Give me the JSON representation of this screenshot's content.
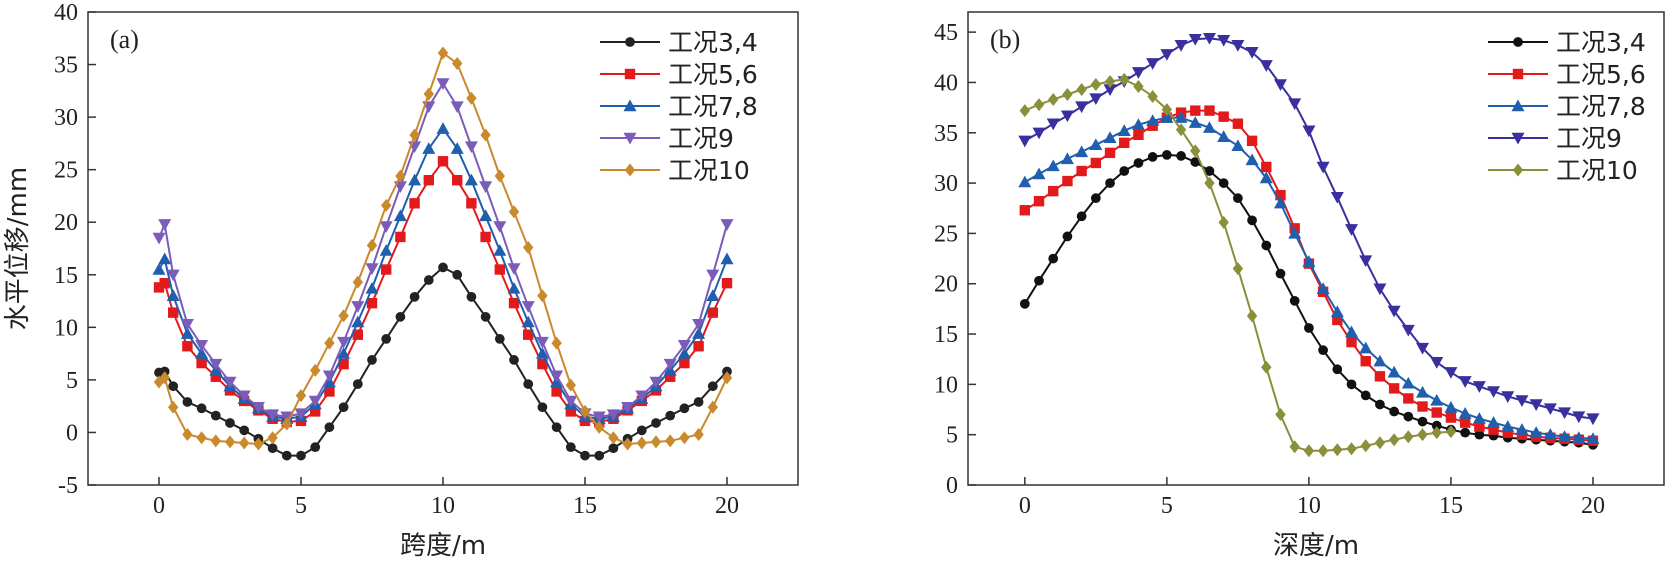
{
  "chart_data": [
    {
      "panel": "(a)",
      "type": "line",
      "xlabel": "跨度/m",
      "ylabel": "水平位移/mm",
      "xlim": [
        -2.5,
        22.5
      ],
      "ylim": [
        -5,
        40
      ],
      "xticks": [
        0,
        5,
        10,
        15,
        20
      ],
      "yticks": [
        -5,
        0,
        5,
        10,
        15,
        20,
        25,
        30,
        35,
        40
      ],
      "legend_position": "top-right",
      "grid": false,
      "series": [
        {
          "name": "工况3,4",
          "color": "#222222",
          "marker": "circle",
          "x": [
            0,
            0.2,
            0.5,
            1,
            1.5,
            2,
            2.5,
            3,
            3.5,
            4,
            4.5,
            5,
            5.5,
            6,
            6.5,
            7,
            7.5,
            8,
            8.5,
            9,
            9.5,
            10,
            10.5,
            11,
            11.5,
            12,
            12.5,
            13,
            13.5,
            14,
            14.5,
            15,
            15.5,
            16,
            16.5,
            17,
            17.5,
            18,
            18.5,
            19,
            19.5,
            20
          ],
          "y": [
            5.7,
            5.8,
            4.4,
            2.9,
            2.3,
            1.6,
            0.9,
            0.2,
            -0.6,
            -1.5,
            -2.2,
            -2.2,
            -1.4,
            0.5,
            2.4,
            4.6,
            6.9,
            8.9,
            11,
            12.9,
            14.5,
            15.7,
            15,
            12.9,
            11,
            8.9,
            6.9,
            4.6,
            2.4,
            0.5,
            -1.4,
            -2.2,
            -2.2,
            -1.5,
            -0.6,
            0.2,
            0.9,
            1.6,
            2.3,
            2.9,
            4.4,
            5.8
          ]
        },
        {
          "name": "工况5,6",
          "color": "#e31a1c",
          "marker": "square",
          "x": [
            0,
            0.2,
            0.5,
            1,
            1.5,
            2,
            2.5,
            3,
            3.5,
            4,
            4.5,
            5,
            5.5,
            6,
            6.5,
            7,
            7.5,
            8,
            8.5,
            9,
            9.5,
            10,
            10.5,
            11,
            11.5,
            12,
            12.5,
            13,
            13.5,
            14,
            14.5,
            15,
            15.5,
            16,
            16.5,
            17,
            17.5,
            18,
            18.5,
            19,
            19.5,
            20
          ],
          "y": [
            13.8,
            14.2,
            11.4,
            8.2,
            6.6,
            5.3,
            4,
            3,
            2.1,
            1.3,
            1,
            1.1,
            2,
            3.9,
            6.5,
            9.3,
            12.3,
            15.5,
            18.6,
            21.8,
            24,
            25.8,
            24,
            21.8,
            18.6,
            15.5,
            12.3,
            9.3,
            6.5,
            3.9,
            2,
            1.1,
            1,
            1.3,
            2.1,
            3,
            4,
            5.3,
            6.6,
            8.2,
            11.4,
            14.2
          ]
        },
        {
          "name": "工况7,8",
          "color": "#1f5fae",
          "marker": "triangle-up",
          "x": [
            0,
            0.2,
            0.5,
            1,
            1.5,
            2,
            2.5,
            3,
            3.5,
            4,
            4.5,
            5,
            5.5,
            6,
            6.5,
            7,
            7.5,
            8,
            8.5,
            9,
            9.5,
            10,
            10.5,
            11,
            11.5,
            12,
            12.5,
            13,
            13.5,
            14,
            14.5,
            15,
            15.5,
            16,
            16.5,
            17,
            17.5,
            18,
            18.5,
            19,
            19.5,
            20
          ],
          "y": [
            15.5,
            16.5,
            13,
            9.4,
            7.5,
            5.9,
            4.4,
            3.2,
            2.3,
            1.5,
            1.3,
            1.5,
            2.7,
            4.8,
            7.5,
            10.5,
            13.7,
            17.3,
            20.6,
            24,
            27,
            28.9,
            27,
            24,
            20.6,
            17.3,
            13.7,
            10.5,
            7.5,
            4.8,
            2.7,
            1.5,
            1.3,
            1.5,
            2.3,
            3.2,
            4.4,
            5.9,
            7.5,
            9.4,
            13,
            16.5
          ]
        },
        {
          "name": "工况9",
          "color": "#7b5cb8",
          "marker": "triangle-down",
          "x": [
            0,
            0.2,
            0.5,
            1,
            1.5,
            2,
            2.5,
            3,
            3.5,
            4,
            4.5,
            5,
            5.5,
            6,
            6.5,
            7,
            7.5,
            8,
            8.5,
            9,
            9.5,
            10,
            10.5,
            11,
            11.5,
            12,
            12.5,
            13,
            13.5,
            14,
            14.5,
            15,
            15.5,
            16,
            16.5,
            17,
            17.5,
            18,
            18.5,
            19,
            19.5,
            20
          ],
          "y": [
            18.5,
            19.8,
            15,
            10.3,
            8.3,
            6.5,
            4.8,
            3.5,
            2.4,
            1.7,
            1.5,
            1.8,
            3,
            5.4,
            8.6,
            12,
            15.6,
            19.6,
            23.4,
            27.2,
            31,
            33.2,
            31,
            27.2,
            23.4,
            19.6,
            15.6,
            12,
            8.6,
            5.4,
            3,
            1.8,
            1.5,
            1.7,
            2.4,
            3.5,
            4.8,
            6.5,
            8.3,
            10.3,
            15,
            19.8
          ]
        },
        {
          "name": "工况10",
          "color": "#c98a2d",
          "marker": "diamond",
          "x": [
            0,
            0.2,
            0.5,
            1,
            1.5,
            2,
            2.5,
            3,
            3.5,
            4,
            4.5,
            5,
            5.5,
            6,
            6.5,
            7,
            7.5,
            8,
            8.5,
            9,
            9.5,
            10,
            10.5,
            11,
            11.5,
            12,
            12.5,
            13,
            13.5,
            14,
            14.5,
            15,
            15.5,
            16,
            16.5,
            17,
            17.5,
            18,
            18.5,
            19,
            19.5,
            20
          ],
          "y": [
            4.8,
            5.2,
            2.4,
            -0.2,
            -0.5,
            -0.8,
            -0.9,
            -1,
            -1.1,
            -0.5,
            0.8,
            3.5,
            5.9,
            8.5,
            11.1,
            14.3,
            17.8,
            21.6,
            24.4,
            28.3,
            32.2,
            36.1,
            35.1,
            31.8,
            28.3,
            24.4,
            21,
            17.6,
            13,
            8.5,
            4.5,
            2,
            0.5,
            -0.5,
            -1.1,
            -1,
            -0.9,
            -0.8,
            -0.5,
            -0.2,
            2.4,
            5.2
          ]
        }
      ]
    },
    {
      "panel": "(b)",
      "type": "line",
      "xlabel": "深度/m",
      "ylabel": "",
      "xlim": [
        -2,
        22.5
      ],
      "ylim": [
        0,
        47
      ],
      "xticks": [
        0,
        5,
        10,
        15,
        20
      ],
      "yticks": [
        0,
        5,
        10,
        15,
        20,
        25,
        30,
        35,
        40,
        45
      ],
      "legend_position": "top-right",
      "grid": false,
      "series": [
        {
          "name": "工况3,4",
          "color": "#111111",
          "marker": "circle",
          "x": [
            0,
            0.5,
            1,
            1.5,
            2,
            2.5,
            3,
            3.5,
            4,
            4.5,
            5,
            5.5,
            6,
            6.5,
            7,
            7.5,
            8,
            8.5,
            9,
            9.5,
            10,
            10.5,
            11,
            11.5,
            12,
            12.5,
            13,
            13.5,
            14,
            14.5,
            15,
            15.5,
            16,
            16.5,
            17,
            17.5,
            18,
            18.5,
            19,
            19.5,
            20
          ],
          "y": [
            18,
            20.3,
            22.5,
            24.7,
            26.7,
            28.5,
            30,
            31.2,
            32,
            32.6,
            32.8,
            32.7,
            32.1,
            31.2,
            30,
            28.5,
            26.3,
            23.8,
            21,
            18.3,
            15.6,
            13.4,
            11.5,
            10,
            8.9,
            8,
            7.3,
            6.8,
            6.3,
            5.9,
            5.5,
            5.2,
            5,
            4.9,
            4.7,
            4.6,
            4.5,
            4.4,
            4.3,
            4.2,
            4
          ]
        },
        {
          "name": "工况5,6",
          "color": "#e31a1c",
          "marker": "square",
          "x": [
            0,
            0.5,
            1,
            1.5,
            2,
            2.5,
            3,
            3.5,
            4,
            4.5,
            5,
            5.5,
            6,
            6.5,
            7,
            7.5,
            8,
            8.5,
            9,
            9.5,
            10,
            10.5,
            11,
            11.5,
            12,
            12.5,
            13,
            13.5,
            14,
            14.5,
            15,
            15.5,
            16,
            16.5,
            17,
            17.5,
            18,
            18.5,
            19,
            19.5,
            20
          ],
          "y": [
            27.3,
            28.2,
            29.2,
            30.2,
            31.2,
            32,
            33,
            34,
            34.8,
            35.7,
            36.5,
            37,
            37.2,
            37.2,
            36.6,
            35.9,
            34.2,
            31.6,
            28.8,
            25.5,
            22,
            19.2,
            16.4,
            14.2,
            12.3,
            10.8,
            9.6,
            8.6,
            7.8,
            7.2,
            6.7,
            6.2,
            5.8,
            5.5,
            5.2,
            5,
            4.8,
            4.7,
            4.6,
            4.5,
            4.4
          ]
        },
        {
          "name": "工况7,8",
          "color": "#1f5fae",
          "marker": "triangle-up",
          "x": [
            0,
            0.5,
            1,
            1.5,
            2,
            2.5,
            3,
            3.5,
            4,
            4.5,
            5,
            5.5,
            6,
            6.5,
            7,
            7.5,
            8,
            8.5,
            9,
            9.5,
            10,
            10.5,
            11,
            11.5,
            12,
            12.5,
            13,
            13.5,
            14,
            14.5,
            15,
            15.5,
            16,
            16.5,
            17,
            17.5,
            18,
            18.5,
            19,
            19.5,
            20
          ],
          "y": [
            30.1,
            30.9,
            31.7,
            32.4,
            33.1,
            33.8,
            34.5,
            35.2,
            35.8,
            36.2,
            36.5,
            36.5,
            36,
            35.5,
            34.6,
            33.7,
            32.3,
            30.5,
            28,
            25,
            22.2,
            19.5,
            17.2,
            15.2,
            13.6,
            12.3,
            11.2,
            10.1,
            9.2,
            8.4,
            7.7,
            7.1,
            6.6,
            6.2,
            5.8,
            5.5,
            5.2,
            5,
            4.8,
            4.7,
            4.6
          ]
        },
        {
          "name": "工况9",
          "color": "#3a2f9e",
          "marker": "triangle-down",
          "x": [
            0,
            0.5,
            1,
            1.5,
            2,
            2.5,
            3,
            3.5,
            4,
            4.5,
            5,
            5.5,
            6,
            6.5,
            7,
            7.5,
            8,
            8.5,
            9,
            9.5,
            10,
            10.5,
            11,
            11.5,
            12,
            12.5,
            13,
            13.5,
            14,
            14.5,
            15,
            15.5,
            16,
            16.5,
            17,
            17.5,
            18,
            18.5,
            19,
            19.5,
            20
          ],
          "y": [
            34.2,
            35,
            35.9,
            36.7,
            37.6,
            38.4,
            39.3,
            40.1,
            41,
            41.9,
            42.8,
            43.7,
            44.3,
            44.4,
            44.2,
            43.7,
            43,
            41.7,
            39.8,
            37.9,
            35.2,
            31.6,
            28.6,
            25.4,
            22.3,
            19.5,
            17.3,
            15.4,
            13.6,
            12.2,
            11.2,
            10.3,
            9.8,
            9.3,
            8.8,
            8.4,
            8,
            7.6,
            7.2,
            6.8,
            6.6
          ]
        },
        {
          "name": "工况10",
          "color": "#8a8f3a",
          "marker": "diamond",
          "x": [
            0,
            0.5,
            1,
            1.5,
            2,
            2.5,
            3,
            3.5,
            4,
            4.5,
            5,
            5.5,
            6,
            6.5,
            7,
            7.5,
            8,
            8.5,
            9,
            9.5,
            10,
            10.5,
            11,
            11.5,
            12,
            12.5,
            13,
            13.5,
            14,
            14.5,
            15
          ],
          "y": [
            37.2,
            37.8,
            38.3,
            38.8,
            39.3,
            39.8,
            40.1,
            40.3,
            39.6,
            38.6,
            37.3,
            35.3,
            33.2,
            30,
            26.1,
            21.5,
            16.8,
            11.7,
            7,
            3.8,
            3.4,
            3.4,
            3.5,
            3.6,
            3.9,
            4.2,
            4.5,
            4.8,
            5,
            5.2,
            5.3
          ]
        }
      ]
    }
  ]
}
